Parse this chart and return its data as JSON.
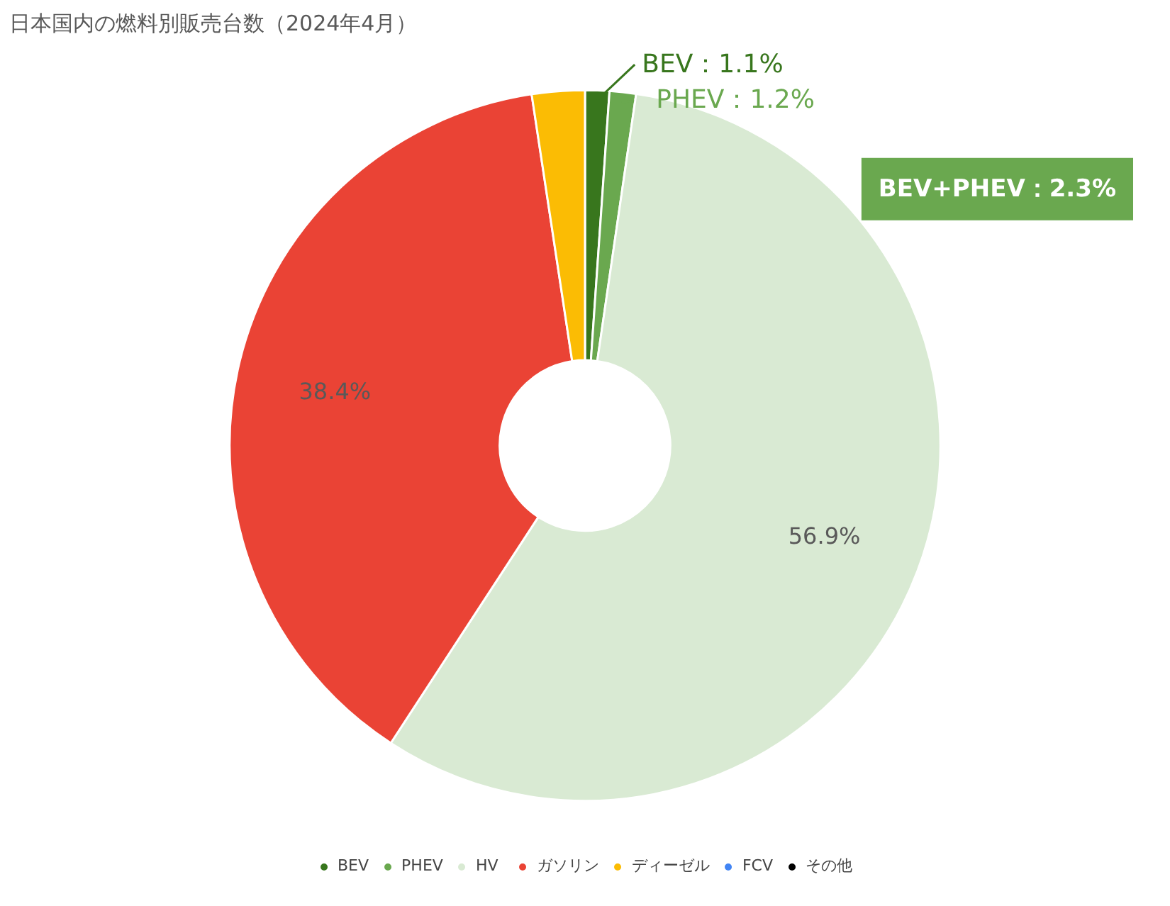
{
  "chart_data": {
    "type": "donut",
    "title": "日本国内の燃料別販売台数（2024年4月）",
    "categories": [
      "BEV",
      "PHEV",
      "HV",
      "ガソリン",
      "ディーゼル",
      "FCV",
      "その他"
    ],
    "values": [
      1.1,
      1.2,
      56.9,
      38.4,
      2.4,
      0.0,
      0.0
    ],
    "colors": [
      "#38761d",
      "#6aa84f",
      "#d9ead3",
      "#ea4335",
      "#fbbc04",
      "#4285f4",
      "#000000"
    ],
    "value_labels": [
      "BEV：1.1%",
      "PHEV：1.2%",
      "56.9%",
      "38.4%",
      null,
      null,
      null
    ],
    "annotations": [
      "BEV+PHEV：2.3%"
    ],
    "legend": "bottom"
  }
}
